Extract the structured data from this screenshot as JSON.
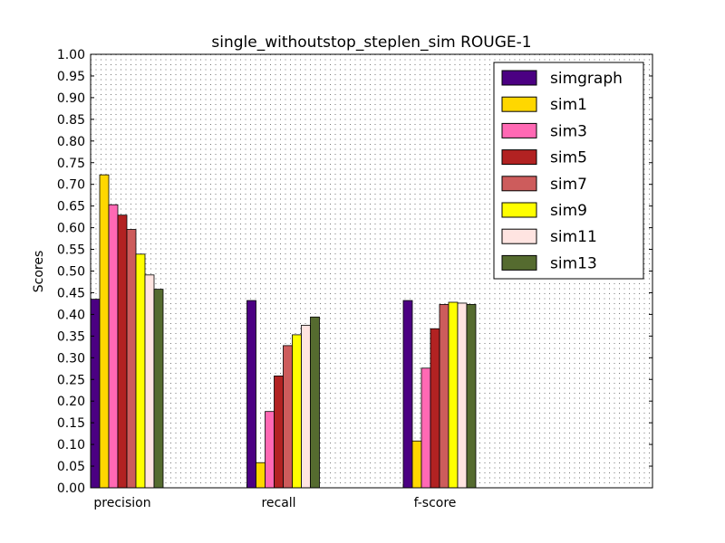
{
  "chart_data": {
    "type": "bar",
    "title": "single_withoutstop_steplen_sim ROUGE-1",
    "xlabel": "",
    "ylabel": "Scores",
    "ylim": [
      0,
      1
    ],
    "yticks": [
      "0.00",
      "0.05",
      "0.10",
      "0.15",
      "0.20",
      "0.25",
      "0.30",
      "0.35",
      "0.40",
      "0.45",
      "0.50",
      "0.55",
      "0.60",
      "0.65",
      "0.70",
      "0.75",
      "0.80",
      "0.85",
      "0.90",
      "0.95",
      "1.00"
    ],
    "categories": [
      "precision",
      "recall",
      "f-score"
    ],
    "grid": true,
    "legend_position": "top-right",
    "series": [
      {
        "name": "simgraph",
        "color": "#4b0082",
        "values": [
          0.435,
          0.432,
          0.432
        ]
      },
      {
        "name": "sim1",
        "color": "#ffd700",
        "values": [
          0.722,
          0.058,
          0.108
        ]
      },
      {
        "name": "sim3",
        "color": "#ff69b4",
        "values": [
          0.653,
          0.176,
          0.276
        ]
      },
      {
        "name": "sim5",
        "color": "#b22222",
        "values": [
          0.629,
          0.258,
          0.367
        ]
      },
      {
        "name": "sim7",
        "color": "#cd5c5c",
        "values": [
          0.596,
          0.328,
          0.423
        ]
      },
      {
        "name": "sim9",
        "color": "#ffff00",
        "values": [
          0.539,
          0.353,
          0.428
        ]
      },
      {
        "name": "sim11",
        "color": "#ffe4e1",
        "values": [
          0.491,
          0.375,
          0.426
        ]
      },
      {
        "name": "sim13",
        "color": "#556b2f",
        "values": [
          0.458,
          0.394,
          0.423
        ]
      }
    ]
  }
}
